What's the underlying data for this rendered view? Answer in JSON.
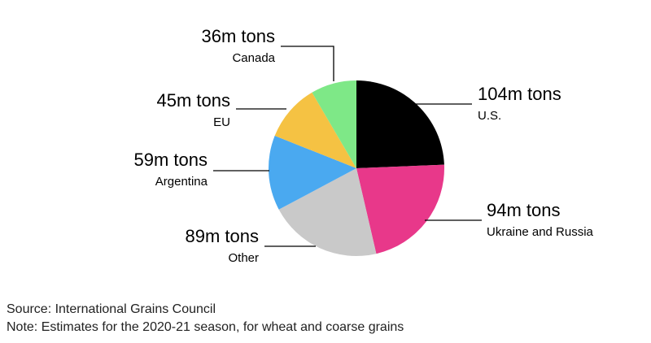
{
  "chart_data": {
    "type": "pie",
    "categories": [
      "U.S.",
      "Ukraine and Russia",
      "Other",
      "Argentina",
      "EU",
      "Canada"
    ],
    "values": [
      104,
      94,
      89,
      59,
      45,
      36
    ],
    "value_labels": [
      "104m tons",
      "94m tons",
      "89m tons",
      "59m tons",
      "45m tons",
      "36m tons"
    ],
    "colors": [
      "#000000",
      "#e8388a",
      "#c9c9c9",
      "#4aa9f0",
      "#f5c243",
      "#7ee887"
    ],
    "source": "Source: International Grains Council",
    "note": "Note: Estimates for the 2020-21 season, for wheat and coarse grains"
  }
}
